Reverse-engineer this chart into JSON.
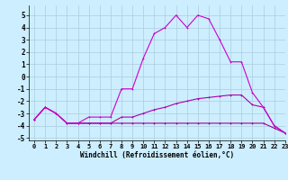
{
  "xlabel": "Windchill (Refroidissement éolien,°C)",
  "background_color": "#cceeff",
  "grid_color": "#aaccdd",
  "xlim": [
    -0.5,
    23
  ],
  "ylim": [
    -5.2,
    5.8
  ],
  "yticks": [
    -5,
    -4,
    -3,
    -2,
    -1,
    0,
    1,
    2,
    3,
    4,
    5
  ],
  "xticks": [
    0,
    1,
    2,
    3,
    4,
    5,
    6,
    7,
    8,
    9,
    10,
    11,
    12,
    13,
    14,
    15,
    16,
    17,
    18,
    19,
    20,
    21,
    22,
    23
  ],
  "series1_x": [
    0,
    1,
    2,
    3,
    4,
    5,
    6,
    7,
    8,
    9,
    10,
    11,
    12,
    13,
    14,
    15,
    16,
    17,
    18,
    19,
    20,
    21,
    22,
    23
  ],
  "series1_y": [
    -3.5,
    -2.5,
    -3.0,
    -3.8,
    -3.8,
    -3.8,
    -3.8,
    -3.8,
    -3.8,
    -3.8,
    -3.8,
    -3.8,
    -3.8,
    -3.8,
    -3.8,
    -3.8,
    -3.8,
    -3.8,
    -3.8,
    -3.8,
    -3.8,
    -3.8,
    -4.2,
    -4.6
  ],
  "series2_x": [
    0,
    1,
    2,
    3,
    4,
    5,
    6,
    7,
    8,
    9,
    10,
    11,
    12,
    13,
    14,
    15,
    16,
    17,
    18,
    19,
    20,
    21,
    22,
    23
  ],
  "series2_y": [
    -3.5,
    -2.5,
    -3.0,
    -3.8,
    -3.8,
    -3.8,
    -3.8,
    -3.8,
    -3.3,
    -3.3,
    -3.0,
    -2.7,
    -2.5,
    -2.2,
    -2.0,
    -1.8,
    -1.7,
    -1.6,
    -1.5,
    -1.5,
    -2.3,
    -2.5,
    -4.0,
    -4.6
  ],
  "series3_x": [
    0,
    1,
    2,
    3,
    4,
    5,
    6,
    7,
    8,
    9,
    10,
    11,
    12,
    13,
    14,
    15,
    16,
    17,
    18,
    19,
    20,
    21,
    22,
    23
  ],
  "series3_y": [
    -3.5,
    -2.5,
    -3.0,
    -3.8,
    -3.8,
    -3.3,
    -3.3,
    -3.3,
    -1.0,
    -1.0,
    1.5,
    3.5,
    4.0,
    5.0,
    4.0,
    5.0,
    4.7,
    3.0,
    1.2,
    1.2,
    -1.3,
    -2.5,
    -4.0,
    -4.6
  ],
  "line_colors": [
    "#990099",
    "#aa00aa",
    "#cc00cc"
  ],
  "marker_size": 2,
  "linewidth": 0.8,
  "tick_fontsize": 5.0,
  "xlabel_fontsize": 5.5
}
